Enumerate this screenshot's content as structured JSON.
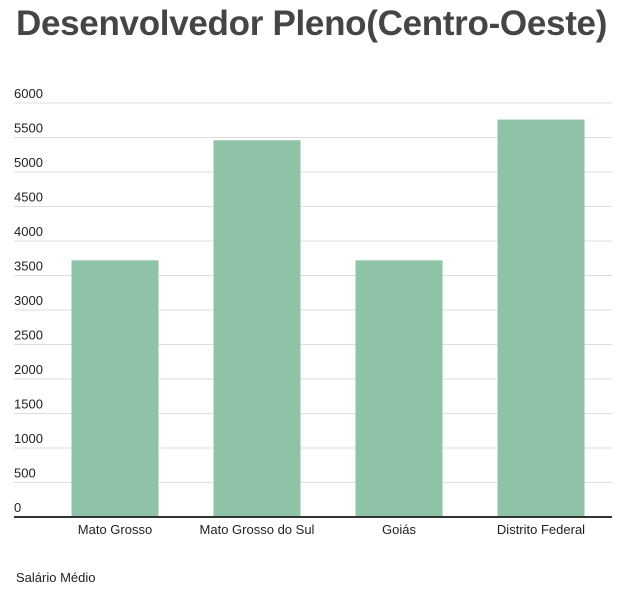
{
  "chart_data": {
    "type": "bar",
    "title": "Desenvolvedor Pleno(Centro-Oeste)",
    "categories": [
      "Mato Grosso",
      "Mato Grosso do Sul",
      "Goiás",
      "Distrito Federal"
    ],
    "series": [
      {
        "name": "Salário Médio",
        "values": [
          3720,
          5460,
          3720,
          5760
        ]
      }
    ],
    "xlabel": "",
    "ylabel": "",
    "ylim": [
      0,
      6000
    ],
    "yticks": [
      0,
      500,
      1000,
      1500,
      2000,
      2500,
      3000,
      3500,
      4000,
      4500,
      5000,
      5500,
      6000
    ],
    "grid": true,
    "legend_position": "bottom-left",
    "colors": {
      "bar": "#8fc3a7",
      "grid": "#dddddd",
      "axis": "#333333"
    }
  }
}
